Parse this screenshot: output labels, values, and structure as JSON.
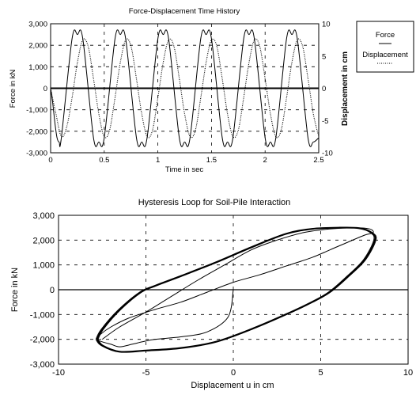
{
  "chart_data": [
    {
      "type": "line",
      "title": "Force-Displacement Time History",
      "xlabel": "Time in sec",
      "ylabel": "Force in kN",
      "y2label": "Displacement in cm",
      "xlim": [
        0,
        2.5
      ],
      "ylim": [
        -3000,
        3000
      ],
      "y2lim": [
        -10,
        10
      ],
      "xticks": [
        "0",
        "0.5",
        "1",
        "1.5",
        "2",
        "2.5"
      ],
      "yticks": [
        "3,000",
        "2,000",
        "1,000",
        "0",
        "-1,000",
        "-2,000",
        "-3,000"
      ],
      "y2ticks": [
        "10",
        "5",
        "0",
        "-5",
        "-10"
      ],
      "grid": true,
      "legend_position": "right-outside",
      "series": [
        {
          "name": "Force",
          "style": "solid",
          "x": [
            0,
            0.02,
            0.04,
            0.06,
            0.08,
            0.1,
            0.2,
            0.25,
            0.3,
            0.4,
            0.45,
            0.5,
            0.6,
            0.65,
            0.7,
            0.8,
            0.85,
            0.9,
            1.0,
            1.05,
            1.1,
            1.2,
            1.25,
            1.3,
            1.4,
            1.45,
            1.5,
            1.6,
            1.65,
            1.7,
            1.8,
            1.85,
            1.9,
            2.0,
            2.05,
            2.1,
            2.2,
            2.25,
            2.3,
            2.4,
            2.45,
            2.5
          ],
          "values": [
            0,
            -700,
            -1600,
            -2300,
            -2500,
            -2300,
            2300,
            2500,
            2300,
            -2300,
            -2500,
            -2300,
            2300,
            2500,
            2300,
            -2300,
            -2500,
            -2300,
            2300,
            2500,
            2300,
            -2300,
            -2500,
            -2300,
            2300,
            2500,
            2300,
            -2300,
            -2500,
            -2300,
            2300,
            2500,
            2300,
            -2300,
            -2500,
            -2300,
            2300,
            2500,
            2300,
            -2300,
            -2500,
            -2300
          ]
        },
        {
          "name": "Displacement",
          "style": "dotted",
          "x": [
            0,
            0.05,
            0.1,
            0.15,
            0.2,
            0.25,
            0.3,
            0.35,
            0.4,
            0.45,
            0.5,
            0.55,
            0.6,
            0.65,
            0.7,
            0.75,
            0.8,
            0.85,
            0.9,
            0.95,
            1.0,
            1.05,
            1.1,
            1.15,
            1.2,
            1.25,
            1.3,
            1.35,
            1.4,
            1.45,
            1.5,
            1.55,
            1.6,
            1.65,
            1.7,
            1.75,
            1.8,
            1.85,
            1.9,
            1.95,
            2.0,
            2.05,
            2.1,
            2.15,
            2.2,
            2.25,
            2.3,
            2.35,
            2.4,
            2.45,
            2.5
          ],
          "values": [
            0,
            -4,
            -7.5,
            -6,
            -1.5,
            4,
            7.5,
            6.5,
            1.5,
            -4,
            -7.5,
            -6.5,
            -1.5,
            4,
            7.5,
            6.5,
            1.5,
            -4,
            -7.5,
            -6.5,
            -1.5,
            4,
            7.5,
            6.5,
            1.5,
            -4,
            -7.5,
            -6.5,
            -1.5,
            4,
            7.5,
            6.5,
            1.5,
            -4,
            -7.5,
            -6.5,
            -1.5,
            4,
            7.5,
            6.5,
            1.5,
            -4,
            -7.5,
            -6.5,
            -1.5,
            4,
            7.5,
            6.5,
            1.5,
            -4,
            -7.5
          ]
        }
      ]
    },
    {
      "type": "line",
      "title": "Hysteresis Loop for Soil-Pile Interaction",
      "xlabel": "Displacement u in cm",
      "ylabel": "Force in kN",
      "xlim": [
        -10,
        10
      ],
      "ylim": [
        -3000,
        3000
      ],
      "xticks": [
        "-10",
        "-5",
        "0",
        "5",
        "10"
      ],
      "yticks": [
        "3,000",
        "2,000",
        "1,000",
        "0",
        "-1,000",
        "-2,000",
        "-3,000"
      ],
      "grid": true,
      "series": [
        {
          "style": "solid",
          "x": [
            0,
            -0.3,
            -1.5,
            -3,
            -4.5,
            -5.2,
            -5.8,
            -6.5,
            -7,
            -7.5,
            -7.8,
            -7.6,
            -7,
            -6,
            -4.5,
            -3,
            -1.5,
            0,
            1.5,
            3,
            4.5,
            5.5,
            6.5,
            7.5,
            8,
            7.8,
            7,
            5.5,
            4,
            2.5,
            1,
            -0.5,
            -2,
            -3.5,
            -5,
            -6.5,
            -7.5
          ],
          "values": [
            0,
            -1100,
            -1700,
            -1900,
            -2000,
            -2100,
            -2200,
            -2300,
            -2200,
            -2100,
            -2000,
            -1800,
            -1500,
            -1150,
            -800,
            -500,
            -100,
            300,
            600,
            950,
            1300,
            1600,
            1900,
            2200,
            2300,
            2450,
            2500,
            2450,
            2300,
            2000,
            1600,
            1000,
            400,
            -250,
            -900,
            -1500,
            -2000
          ]
        },
        {
          "style": "solid",
          "x": [
            -7.8,
            -7.5,
            -6.5,
            -5,
            -3,
            -1,
            1,
            3,
            4.5,
            5.5,
            6.5,
            7.5,
            8.1,
            7.9,
            7.2,
            6,
            4.5,
            3,
            1,
            -1,
            -3,
            -4.5,
            -5.3,
            -6.5,
            -7.5,
            -7.8
          ],
          "values": [
            -2000,
            -2250,
            -2500,
            -2450,
            -2350,
            -2100,
            -1600,
            -1000,
            -500,
            -100,
            500,
            1200,
            2000,
            2300,
            2480,
            2500,
            2450,
            2250,
            1700,
            1100,
            550,
            150,
            -100,
            -800,
            -1600,
            -2000
          ]
        }
      ]
    }
  ],
  "legend": {
    "force_label": "Force",
    "displacement_label": "Displacement"
  }
}
